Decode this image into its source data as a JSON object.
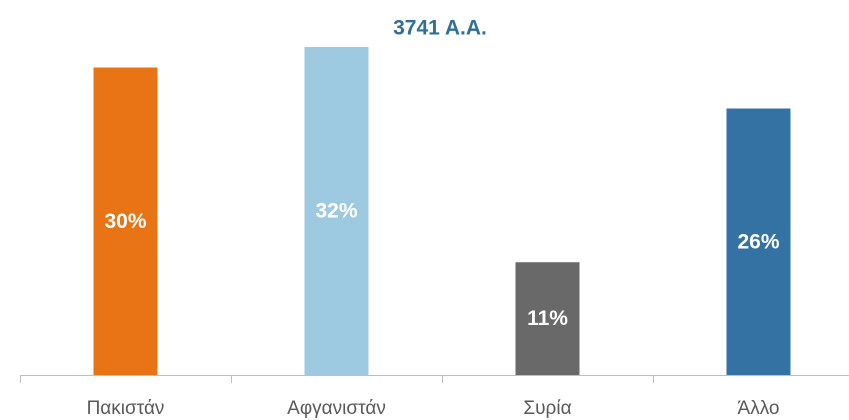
{
  "chart_data": {
    "type": "bar",
    "title": "3741 A.A.",
    "categories": [
      "Πακιστάν",
      "Αφγανιστάν",
      "Συρία",
      "Άλλο"
    ],
    "values": [
      30,
      32,
      11,
      26
    ],
    "value_labels": [
      "30%",
      "32%",
      "11%",
      "26%"
    ],
    "colors": [
      "#e87415",
      "#9ecae1",
      "#696969",
      "#3472a4"
    ]
  }
}
